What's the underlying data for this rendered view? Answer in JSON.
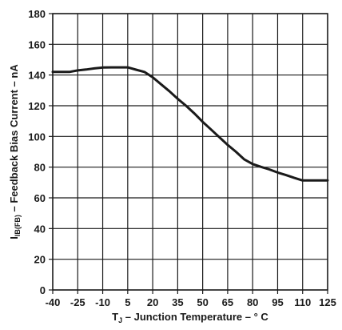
{
  "chart_data": {
    "type": "line",
    "xlabel": {
      "main": "T",
      "sub": "J",
      "rest": " – Junction Temperature – ° C"
    },
    "ylabel": {
      "main": "I",
      "sub": "IB(FB)",
      "rest": " – Feedback Bias Current – nA"
    },
    "xlim": [
      -40,
      125
    ],
    "ylim": [
      0,
      180
    ],
    "xticks": [
      -40,
      -25,
      -10,
      5,
      20,
      35,
      50,
      65,
      80,
      95,
      110,
      125
    ],
    "yticks": [
      0,
      20,
      40,
      60,
      80,
      100,
      120,
      140,
      160,
      180
    ],
    "grid": true,
    "series": [
      {
        "x": [
          -40,
          -30,
          -25,
          -20,
          -15,
          -10,
          -5,
          0,
          5,
          10,
          15,
          20,
          25,
          30,
          35,
          40,
          45,
          50,
          55,
          60,
          65,
          70,
          75,
          80,
          85,
          90,
          95,
          100,
          105,
          110,
          115,
          120,
          125
        ],
        "y": [
          142,
          142,
          143,
          143.6,
          144.3,
          144.9,
          145,
          145,
          145,
          143.5,
          142,
          138.5,
          134,
          129.5,
          124.5,
          120,
          115,
          109.5,
          104.5,
          99.5,
          94.5,
          90,
          85,
          82,
          80.2,
          78.5,
          76.5,
          74.8,
          73,
          71.3,
          71.3,
          71.3,
          71.3
        ]
      }
    ],
    "colors": {
      "line": "#1a1a1a",
      "grid": "#1a1a1a"
    }
  }
}
